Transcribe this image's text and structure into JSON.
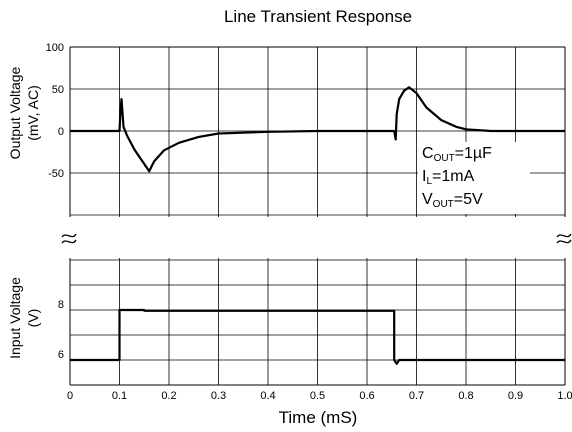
{
  "chart_data": {
    "type": "line",
    "title": "Line Transient Response",
    "xlabel": "Time (mS)",
    "xlim": [
      0,
      1.0
    ],
    "x_ticks": [
      "0",
      "0.1",
      "0.2",
      "0.3",
      "0.4",
      "0.5",
      "0.6",
      "0.7",
      "0.8",
      "0.9",
      "1.0"
    ],
    "panels": [
      {
        "name": "output",
        "ylabel_line1": "Output Voltage",
        "ylabel_line2": "(mV, AC)",
        "ylim": [
          -100,
          100
        ],
        "y_ticks": [
          "100",
          "50",
          "0",
          "-50"
        ],
        "series": [
          {
            "x": [
              0,
              0.1,
              0.102,
              0.104,
              0.108,
              0.115,
              0.13,
              0.145,
              0.16,
              0.17,
              0.19,
              0.22,
              0.26,
              0.3,
              0.35,
              0.4,
              0.5,
              0.6,
              0.655,
              0.658,
              0.66,
              0.665,
              0.675,
              0.685,
              0.7,
              0.72,
              0.75,
              0.78,
              0.8,
              0.85,
              0.9,
              1.0
            ],
            "values": [
              0,
              0,
              25,
              38,
              5,
              -5,
              -22,
              -35,
              -48,
              -36,
              -23,
              -14,
              -7,
              -3,
              -2,
              -1,
              0,
              0,
              0,
              -10,
              20,
              38,
              48,
              52,
              45,
              28,
              13,
              5,
              2,
              0,
              0,
              0
            ]
          }
        ]
      },
      {
        "name": "input",
        "ylabel_line1": "Input Voltage",
        "ylabel_line2": "(V)",
        "ylim": [
          5,
          10
        ],
        "y_ticks": [
          "8",
          "6"
        ],
        "series": [
          {
            "x": [
              0,
              0.1,
              0.1,
              0.15,
              0.15,
              0.655,
              0.655,
              0.66,
              0.665,
              0.68,
              1.0
            ],
            "values": [
              6,
              6,
              8,
              8,
              7.97,
              7.97,
              6,
              5.85,
              6,
              6,
              6
            ]
          }
        ]
      }
    ],
    "annotation": [
      {
        "main": "C",
        "sub": "OUT",
        "rest": "=1µF"
      },
      {
        "main": "I",
        "sub": "L",
        "rest": "=1mA"
      },
      {
        "main": "V",
        "sub": "OUT",
        "rest": "=5V"
      }
    ],
    "grid": true,
    "break_marks": true
  }
}
